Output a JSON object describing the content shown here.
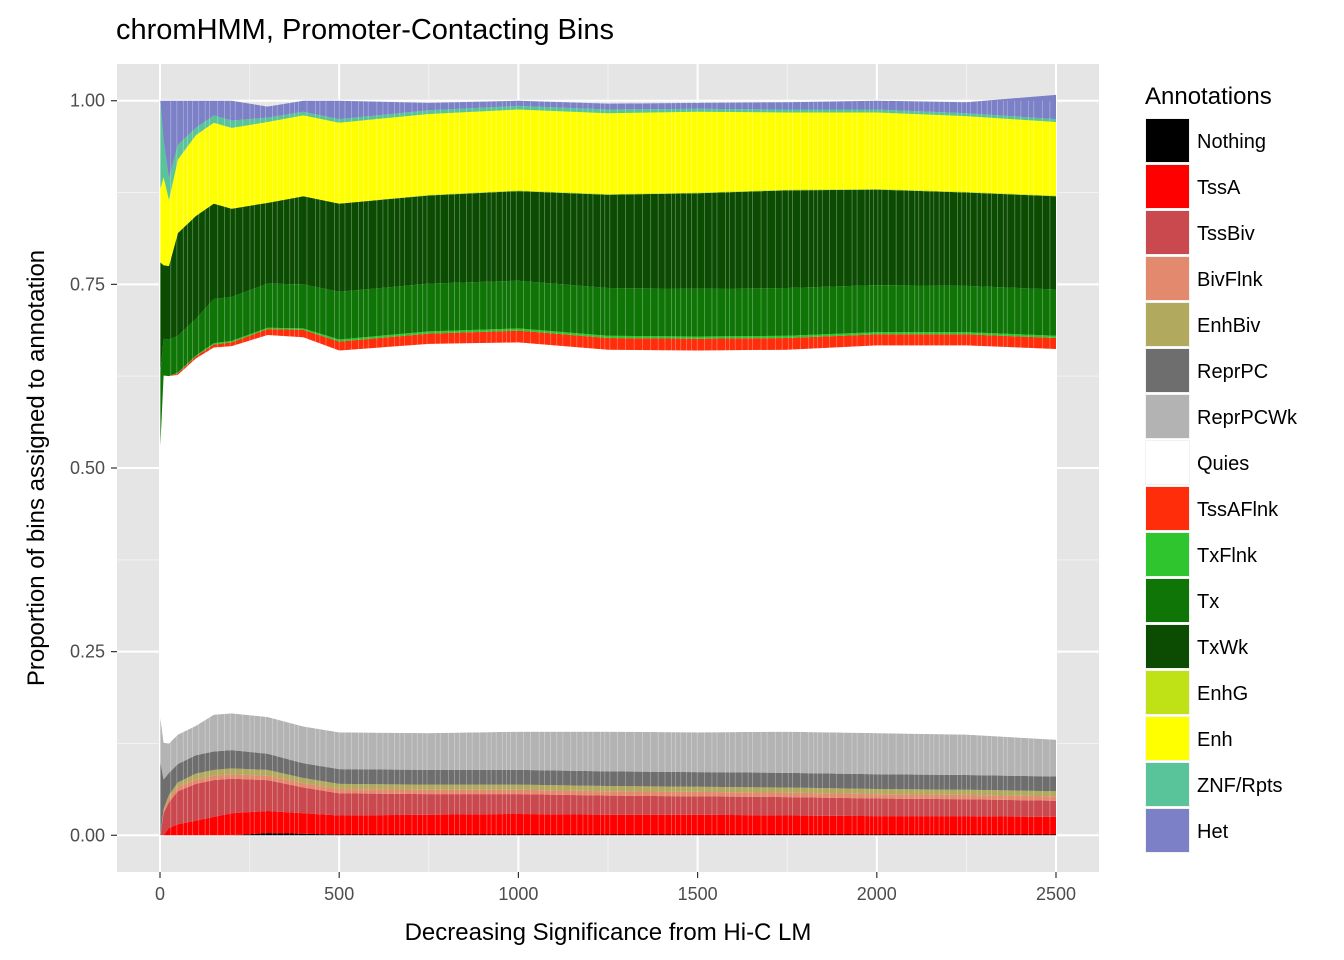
{
  "chart_data": {
    "type": "area",
    "title": "chromHMM, Promoter-Contacting Bins",
    "xlabel": "Decreasing Significance from Hi-C LM",
    "ylabel": "Proportion of bins assigned to annotation",
    "xlim": [
      -120,
      2620
    ],
    "ylim": [
      -0.05,
      1.05
    ],
    "x_ticks": [
      0,
      500,
      1000,
      1500,
      2000,
      2500
    ],
    "x_tick_labels": [
      "0",
      "500",
      "1000",
      "1500",
      "2000",
      "2500"
    ],
    "y_ticks": [
      0,
      0.25,
      0.5,
      0.75,
      1.0
    ],
    "y_tick_labels": [
      "0.00",
      "0.25",
      "0.50",
      "0.75",
      "1.00"
    ],
    "grid": true,
    "background": "#e5e5e5",
    "legend": {
      "title": "Annotations",
      "placement": "right",
      "entries": [
        {
          "label": "Nothing",
          "color": "#000000"
        },
        {
          "label": "TssA",
          "color": "#ff0000"
        },
        {
          "label": "TssBiv",
          "color": "#c9494f"
        },
        {
          "label": "BivFlnk",
          "color": "#e3896e"
        },
        {
          "label": "EnhBiv",
          "color": "#b1aa5e"
        },
        {
          "label": "ReprPC",
          "color": "#6e6e6e"
        },
        {
          "label": "ReprPCWk",
          "color": "#b3b3b3"
        },
        {
          "label": "Quies",
          "color": "#ffffff"
        },
        {
          "label": "TssAFlnk",
          "color": "#ff2d0a"
        },
        {
          "label": "TxFlnk",
          "color": "#2ec52e"
        },
        {
          "label": "Tx",
          "color": "#0e7506"
        },
        {
          "label": "TxWk",
          "color": "#0b4c02"
        },
        {
          "label": "EnhG",
          "color": "#bee215"
        },
        {
          "label": "Enh",
          "color": "#ffff00"
        },
        {
          "label": "ZNF/Rpts",
          "color": "#59c39a"
        },
        {
          "label": "Het",
          "color": "#7b80c7"
        }
      ]
    },
    "x": [
      1,
      10,
      25,
      50,
      100,
      150,
      200,
      300,
      400,
      500,
      750,
      1000,
      1250,
      1500,
      1750,
      2000,
      2250,
      2500
    ],
    "series": [
      {
        "name": "Nothing",
        "values": [
          0,
          0,
          0,
          0,
          0,
          0,
          0,
          0.003,
          0.002,
          0.001,
          0.001,
          0.001,
          0.001,
          0.001,
          0.001,
          0.001,
          0.001,
          0.001
        ]
      },
      {
        "name": "TssA",
        "values": [
          0,
          0,
          0.01,
          0.015,
          0.02,
          0.025,
          0.03,
          0.03,
          0.028,
          0.026,
          0.027,
          0.028,
          0.027,
          0.027,
          0.026,
          0.025,
          0.025,
          0.024
        ]
      },
      {
        "name": "TssBiv",
        "values": [
          0,
          0.03,
          0.035,
          0.045,
          0.05,
          0.05,
          0.047,
          0.042,
          0.035,
          0.03,
          0.028,
          0.027,
          0.026,
          0.025,
          0.025,
          0.024,
          0.023,
          0.022
        ]
      },
      {
        "name": "BivFlnk",
        "values": [
          0,
          0.003,
          0.005,
          0.006,
          0.006,
          0.006,
          0.006,
          0.006,
          0.006,
          0.006,
          0.006,
          0.006,
          0.006,
          0.006,
          0.006,
          0.006,
          0.006,
          0.006
        ]
      },
      {
        "name": "EnhBiv",
        "values": [
          0,
          0.003,
          0.005,
          0.006,
          0.008,
          0.008,
          0.008,
          0.008,
          0.007,
          0.007,
          0.007,
          0.007,
          0.007,
          0.007,
          0.007,
          0.007,
          0.007,
          0.007
        ]
      },
      {
        "name": "ReprPC",
        "values": [
          0.1,
          0.04,
          0.03,
          0.025,
          0.025,
          0.025,
          0.025,
          0.022,
          0.02,
          0.02,
          0.02,
          0.02,
          0.02,
          0.02,
          0.02,
          0.02,
          0.02,
          0.02
        ]
      },
      {
        "name": "ReprPCWk",
        "values": [
          0.06,
          0.05,
          0.04,
          0.04,
          0.04,
          0.05,
          0.05,
          0.05,
          0.05,
          0.05,
          0.05,
          0.052,
          0.054,
          0.054,
          0.056,
          0.056,
          0.055,
          0.05
        ]
      },
      {
        "name": "Quies",
        "values": [
          0.37,
          0.5,
          0.5,
          0.49,
          0.5,
          0.5,
          0.5,
          0.52,
          0.53,
          0.52,
          0.53,
          0.53,
          0.52,
          0.52,
          0.52,
          0.528,
          0.53,
          0.532
        ]
      },
      {
        "name": "TssAFlnk",
        "values": [
          0,
          0,
          0,
          0.002,
          0.003,
          0.004,
          0.005,
          0.008,
          0.01,
          0.012,
          0.014,
          0.016,
          0.016,
          0.016,
          0.016,
          0.015,
          0.015,
          0.015
        ]
      },
      {
        "name": "TxFlnk",
        "values": [
          0,
          0,
          0,
          0.001,
          0.001,
          0.002,
          0.002,
          0.002,
          0.002,
          0.003,
          0.003,
          0.003,
          0.003,
          0.003,
          0.003,
          0.003,
          0.003,
          0.003
        ]
      },
      {
        "name": "Tx",
        "values": [
          0.1,
          0.05,
          0.05,
          0.05,
          0.05,
          0.06,
          0.06,
          0.06,
          0.06,
          0.065,
          0.065,
          0.065,
          0.065,
          0.065,
          0.065,
          0.064,
          0.063,
          0.063
        ]
      },
      {
        "name": "TxWk",
        "values": [
          0.15,
          0.1,
          0.1,
          0.14,
          0.14,
          0.13,
          0.12,
          0.11,
          0.12,
          0.12,
          0.12,
          0.122,
          0.127,
          0.13,
          0.133,
          0.13,
          0.127,
          0.127
        ]
      },
      {
        "name": "EnhG",
        "values": [
          0,
          0,
          0,
          0,
          0,
          0,
          0,
          0,
          0,
          0,
          0.001,
          0.001,
          0.001,
          0.001,
          0.001,
          0.001,
          0.001,
          0.001
        ]
      },
      {
        "name": "Enh",
        "values": [
          0.1,
          0.12,
          0.09,
          0.1,
          0.11,
          0.11,
          0.11,
          0.11,
          0.11,
          0.11,
          0.11,
          0.11,
          0.11,
          0.11,
          0.105,
          0.104,
          0.103,
          0.1
        ]
      },
      {
        "name": "ZNF/Rpts",
        "values": [
          0.12,
          0.05,
          0.03,
          0.02,
          0.01,
          0.01,
          0.01,
          0.006,
          0.005,
          0.005,
          0.005,
          0.005,
          0.005,
          0.004,
          0.004,
          0.004,
          0.004,
          0.004
        ]
      },
      {
        "name": "Het",
        "values": [
          0,
          0.054,
          0.105,
          0.06,
          0.037,
          0.02,
          0.027,
          0.015,
          0.015,
          0.025,
          0.01,
          0.007,
          0.008,
          0.008,
          0.01,
          0.012,
          0.015,
          0.033
        ]
      }
    ]
  }
}
